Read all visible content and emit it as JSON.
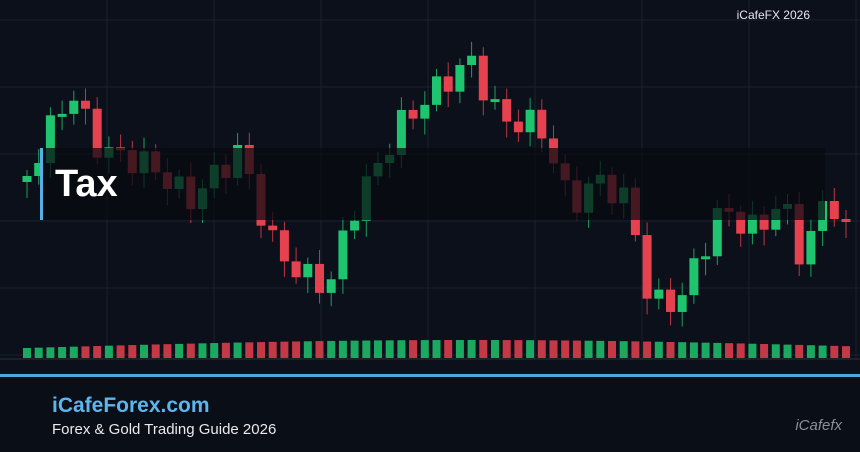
{
  "header": {
    "corner_label": "iCafeFX 2026"
  },
  "banner": {
    "title": "Tax"
  },
  "footer": {
    "site": "iCafeForex.com",
    "tagline": "Forex & Gold Trading Guide 2026",
    "logo": "iCafefx"
  }
}
